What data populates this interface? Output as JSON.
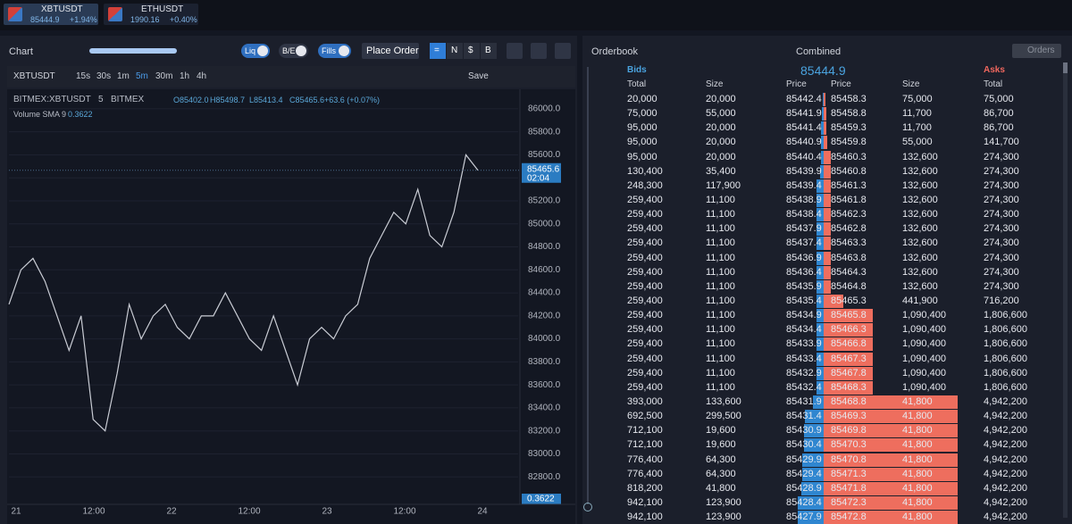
{
  "tabs": [
    {
      "symbol": "XBTUSDT",
      "price": "85444.9",
      "change": "+1.94%"
    },
    {
      "symbol": "ETHUSDT",
      "price": "1990.16",
      "change": "+0.40%"
    }
  ],
  "chart_panel": {
    "title": "Chart",
    "toggles": [
      "Liq",
      "B/E",
      "Fills"
    ],
    "place_order": "Place Order",
    "units": [
      "=",
      "N",
      "$",
      "B"
    ]
  },
  "chart_toolbar": {
    "symbol": "XBTUSDT",
    "intervals": [
      "15s",
      "30s",
      "1m",
      "5m",
      "30m",
      "1h",
      "4h"
    ],
    "save": "Save"
  },
  "chart_legend": {
    "symbol": "BITMEX:XBTUSDT",
    "interval": "5",
    "exchange": "BITMEX",
    "ohlc": [
      "O85402.0",
      "H85498.7",
      "L85413.4",
      "C85465.6",
      "+63.6 (+0.07%)"
    ],
    "volume_name": "Volume SMA 9",
    "volume_value": "0.3622"
  },
  "chart_data": {
    "type": "line",
    "color": "#c9ccd4",
    "values": [
      84300,
      84600,
      84700,
      84500,
      84200,
      83900,
      84200,
      83300,
      83200,
      83700,
      84300,
      84000,
      84200,
      84300,
      84100,
      84000,
      84200,
      84200,
      84400,
      84200,
      84000,
      83900,
      84200,
      83900,
      83600,
      84000,
      84100,
      84000,
      84200,
      84300,
      84700,
      84900,
      85100,
      85000,
      85300,
      84900,
      84800,
      85100,
      85600,
      85465.6
    ],
    "ylim": [
      82600,
      86170
    ],
    "yticks": [
      {
        "value": 86000,
        "label": "86000.0"
      },
      {
        "value": 85800,
        "label": "85800.0"
      },
      {
        "value": 85600,
        "label": "85600.0"
      },
      {
        "value": 85400,
        "label": "85400.0"
      },
      {
        "value": 85200,
        "label": "85200.0"
      },
      {
        "value": 85000,
        "label": "85000.0"
      },
      {
        "value": 84800,
        "label": "84800.0"
      },
      {
        "value": 84600,
        "label": "84600.0"
      },
      {
        "value": 84400,
        "label": "84400.0"
      },
      {
        "value": 84200,
        "label": "84200.0"
      },
      {
        "value": 84000,
        "label": "84000.0"
      },
      {
        "value": 83800,
        "label": "83800.0"
      },
      {
        "value": 83600,
        "label": "83600.0"
      },
      {
        "value": 83400,
        "label": "83400.0"
      },
      {
        "value": 83200,
        "label": "83200.0"
      },
      {
        "value": 83000,
        "label": "83000.0"
      },
      {
        "value": 82800,
        "label": "82800.0"
      }
    ],
    "x_labels": [
      "21",
      "12:00",
      "22",
      "12:00",
      "23",
      "12:00",
      "24"
    ],
    "last_price": {
      "value": 85465.6,
      "label": "85465.6"
    },
    "countdown": "02:04",
    "volume_label": "0.3622"
  },
  "orderbook": {
    "title": "Orderbook",
    "mode": "Combined",
    "orders": "Orders",
    "bids_label": "Bids",
    "mid_price": "85444.9",
    "asks_label": "Asks",
    "columns": [
      "Total",
      "Size",
      "Price",
      "Price",
      "Size",
      "Total"
    ],
    "rows": [
      [
        "20,000",
        "20,000",
        "85442.4",
        "85458.3",
        "75,000",
        "75,000"
      ],
      [
        "75,000",
        "55,000",
        "85441.9",
        "85458.8",
        "11,700",
        "86,700"
      ],
      [
        "95,000",
        "20,000",
        "85441.4",
        "85459.3",
        "11,700",
        "86,700"
      ],
      [
        "95,000",
        "20,000",
        "85440.9",
        "85459.8",
        "55,000",
        "141,700"
      ],
      [
        "95,000",
        "20,000",
        "85440.4",
        "85460.3",
        "132,600",
        "274,300"
      ],
      [
        "130,400",
        "35,400",
        "85439.9",
        "85460.8",
        "132,600",
        "274,300"
      ],
      [
        "248,300",
        "117,900",
        "85439.4",
        "85461.3",
        "132,600",
        "274,300"
      ],
      [
        "259,400",
        "11,100",
        "85438.9",
        "85461.8",
        "132,600",
        "274,300"
      ],
      [
        "259,400",
        "11,100",
        "85438.4",
        "85462.3",
        "132,600",
        "274,300"
      ],
      [
        "259,400",
        "11,100",
        "85437.9",
        "85462.8",
        "132,600",
        "274,300"
      ],
      [
        "259,400",
        "11,100",
        "85437.4",
        "85463.3",
        "132,600",
        "274,300"
      ],
      [
        "259,400",
        "11,100",
        "85436.9",
        "85463.8",
        "132,600",
        "274,300"
      ],
      [
        "259,400",
        "11,100",
        "85436.4",
        "85464.3",
        "132,600",
        "274,300"
      ],
      [
        "259,400",
        "11,100",
        "85435.9",
        "85464.8",
        "132,600",
        "274,300"
      ],
      [
        "259,400",
        "11,100",
        "85435.4",
        "85465.3",
        "441,900",
        "716,200"
      ],
      [
        "259,400",
        "11,100",
        "85434.9",
        "85465.8",
        "1,090,400",
        "1,806,600"
      ],
      [
        "259,400",
        "11,100",
        "85434.4",
        "85466.3",
        "1,090,400",
        "1,806,600"
      ],
      [
        "259,400",
        "11,100",
        "85433.9",
        "85466.8",
        "1,090,400",
        "1,806,600"
      ],
      [
        "259,400",
        "11,100",
        "85433.4",
        "85467.3",
        "1,090,400",
        "1,806,600"
      ],
      [
        "259,400",
        "11,100",
        "85432.9",
        "85467.8",
        "1,090,400",
        "1,806,600"
      ],
      [
        "259,400",
        "11,100",
        "85432.4",
        "85468.3",
        "1,090,400",
        "1,806,600"
      ],
      [
        "393,000",
        "133,600",
        "85431.9",
        "85468.8",
        "41,800",
        "4,942,200"
      ],
      [
        "692,500",
        "299,500",
        "85431.4",
        "85469.3",
        "41,800",
        "4,942,200"
      ],
      [
        "712,100",
        "19,600",
        "85430.9",
        "85469.8",
        "41,800",
        "4,942,200"
      ],
      [
        "712,100",
        "19,600",
        "85430.4",
        "85470.3",
        "41,800",
        "4,942,200"
      ],
      [
        "776,400",
        "64,300",
        "85429.9",
        "85470.8",
        "41,800",
        "4,942,200"
      ],
      [
        "776,400",
        "64,300",
        "85429.4",
        "85471.3",
        "41,800",
        "4,942,200"
      ],
      [
        "818,200",
        "41,800",
        "85428.9",
        "85471.8",
        "41,800",
        "4,942,200"
      ],
      [
        "942,100",
        "123,900",
        "85428.4",
        "85472.3",
        "41,800",
        "4,942,200"
      ],
      [
        "942,100",
        "123,900",
        "85427.9",
        "85472.8",
        "41,800",
        "4,942,200"
      ]
    ]
  }
}
